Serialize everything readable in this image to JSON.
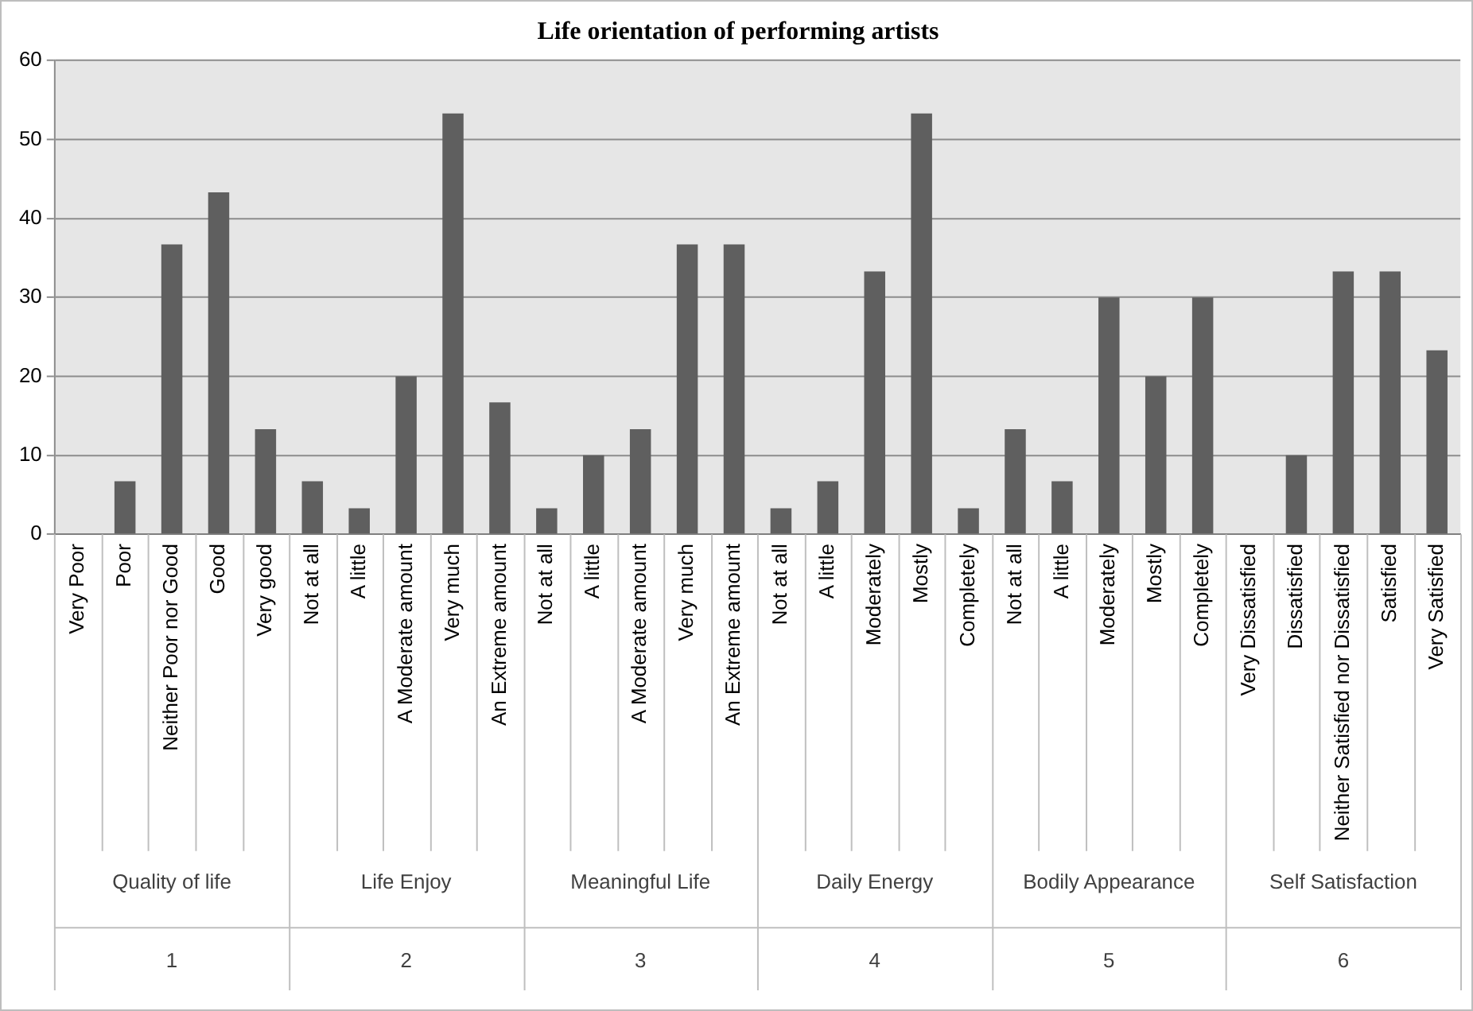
{
  "chart_data": {
    "type": "bar",
    "title": "Life orientation of performing artists",
    "categories": [
      "Very Poor",
      "Poor",
      "Neither Poor nor Good",
      "Good",
      "Very good",
      "Not at all",
      "A little",
      "A Moderate amount",
      "Very much",
      "An Extreme amount",
      "Not at all",
      "A little",
      "A Moderate amount",
      "Very much",
      "An Extreme amount",
      "Not at all",
      "A little",
      "Moderately",
      "Mostly",
      "Completely",
      "Not at all",
      "A little",
      "Moderately",
      "Mostly",
      "Completely",
      "Very Dissatisfied",
      "Dissatisfied",
      "Neither Satisfied nor Dissatisfied",
      "Satisfied",
      "Very Satisfied"
    ],
    "values": [
      0,
      6.7,
      36.7,
      43.3,
      13.3,
      6.7,
      3.3,
      20,
      53.3,
      16.7,
      3.3,
      10,
      13.3,
      36.7,
      36.7,
      3.3,
      6.7,
      33.3,
      53.3,
      3.3,
      13.3,
      6.7,
      30,
      20,
      30,
      0,
      10,
      33.3,
      33.3,
      23.3
    ],
    "color": "#5f5f5f",
    "ylim": [
      0,
      60
    ],
    "yticks": [
      0,
      10,
      20,
      30,
      40,
      50,
      60
    ],
    "grid": "y",
    "legend": false,
    "annotations": [
      "Quality of life",
      "Life Enjoy",
      "Meaningful Life",
      "Daily Energy",
      "Bodily Appearance",
      "Self Satisfaction",
      "1",
      "2",
      "3",
      "4",
      "5",
      "6"
    ]
  }
}
